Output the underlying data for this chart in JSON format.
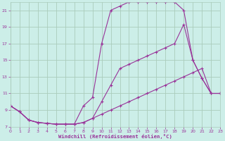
{
  "xlabel": "Windchill (Refroidissement éolien,°C)",
  "bg_color": "#cceee8",
  "grid_color": "#aaccbb",
  "line_color": "#993399",
  "x_ticks": [
    0,
    1,
    2,
    3,
    4,
    5,
    6,
    7,
    8,
    9,
    10,
    11,
    12,
    13,
    14,
    15,
    16,
    17,
    18,
    19,
    20,
    21,
    22,
    23
  ],
  "y_ticks": [
    7,
    9,
    11,
    13,
    15,
    17,
    19,
    21
  ],
  "xlim": [
    0,
    23
  ],
  "ylim": [
    7,
    22
  ],
  "series1_x": [
    0,
    1,
    2,
    3,
    4,
    5,
    6,
    7,
    8,
    9,
    10,
    11,
    12,
    13,
    14,
    15,
    16,
    17,
    18,
    19,
    20,
    21,
    22,
    23
  ],
  "series1_y": [
    9.5,
    8.8,
    7.8,
    7.5,
    7.4,
    7.3,
    7.3,
    7.3,
    7.5,
    8.0,
    8.5,
    9.0,
    9.5,
    10.0,
    10.5,
    11.0,
    11.5,
    12.0,
    12.5,
    13.0,
    13.5,
    14.0,
    11.0,
    11.0
  ],
  "series2_x": [
    0,
    1,
    2,
    3,
    4,
    5,
    6,
    7,
    8,
    9,
    10,
    11,
    12,
    13,
    14,
    15,
    16,
    17,
    18,
    19,
    20,
    21,
    22,
    23
  ],
  "series2_y": [
    9.5,
    8.8,
    7.8,
    7.5,
    7.4,
    7.3,
    7.3,
    7.3,
    7.5,
    8.0,
    10.0,
    12.0,
    14.0,
    14.5,
    15.0,
    15.5,
    16.0,
    16.5,
    17.0,
    19.3,
    15.0,
    12.8,
    11.0,
    11.0
  ],
  "series3_x": [
    0,
    1,
    2,
    3,
    4,
    5,
    6,
    7,
    8,
    9,
    10,
    11,
    12,
    13,
    14,
    15,
    16,
    17,
    18,
    19,
    20,
    21,
    22,
    23
  ],
  "series3_y": [
    9.5,
    8.8,
    7.8,
    7.5,
    7.4,
    7.3,
    7.3,
    7.3,
    9.5,
    10.5,
    17.0,
    21.0,
    21.5,
    22.0,
    22.0,
    22.0,
    22.0,
    22.0,
    22.0,
    21.0,
    15.0,
    12.8,
    11.0,
    11.0
  ]
}
